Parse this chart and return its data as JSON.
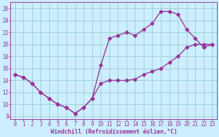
{
  "xlabel": "Windchill (Refroidissement éolien,°C)",
  "background_color": "#cceeff",
  "line_color": "#993399",
  "marker": "D",
  "markersize": 2.5,
  "linewidth": 1.0,
  "xlim": [
    -0.5,
    23.5
  ],
  "ylim": [
    7.5,
    27
  ],
  "xticks": [
    0,
    1,
    2,
    3,
    4,
    5,
    6,
    7,
    8,
    9,
    10,
    11,
    12,
    13,
    14,
    15,
    16,
    17,
    18,
    19,
    20,
    21,
    22,
    23
  ],
  "yticks": [
    8,
    10,
    12,
    14,
    16,
    18,
    20,
    22,
    24,
    26
  ],
  "grid_color": "#99cccc",
  "series1_x": [
    0,
    1,
    2,
    3,
    4,
    5,
    6,
    7,
    8,
    9,
    10,
    11,
    12,
    13,
    14,
    15,
    16,
    17,
    18,
    19,
    20,
    21,
    22,
    23
  ],
  "series1_y": [
    15,
    14.5,
    13.5,
    12,
    11,
    10,
    9.5,
    8.5,
    9.5,
    11,
    13.5,
    14,
    14,
    14,
    14.2,
    15,
    15.5,
    16,
    17,
    18,
    19.5,
    20,
    20,
    20
  ],
  "series2_x": [
    0,
    1,
    2,
    3,
    4,
    5,
    6,
    7,
    8,
    9,
    10,
    11,
    12,
    13,
    14,
    15,
    16,
    17,
    18,
    19,
    20,
    21,
    22,
    23
  ],
  "series2_y": [
    15,
    14.5,
    13.5,
    12,
    11,
    10,
    9.5,
    8.5,
    9.5,
    11,
    16.5,
    21,
    21.5,
    22,
    21.5,
    22.5,
    23.5,
    25.5,
    25.5,
    25,
    22.5,
    21,
    19.5,
    20
  ],
  "label_fontsize": 6,
  "tick_fontsize": 5.5
}
